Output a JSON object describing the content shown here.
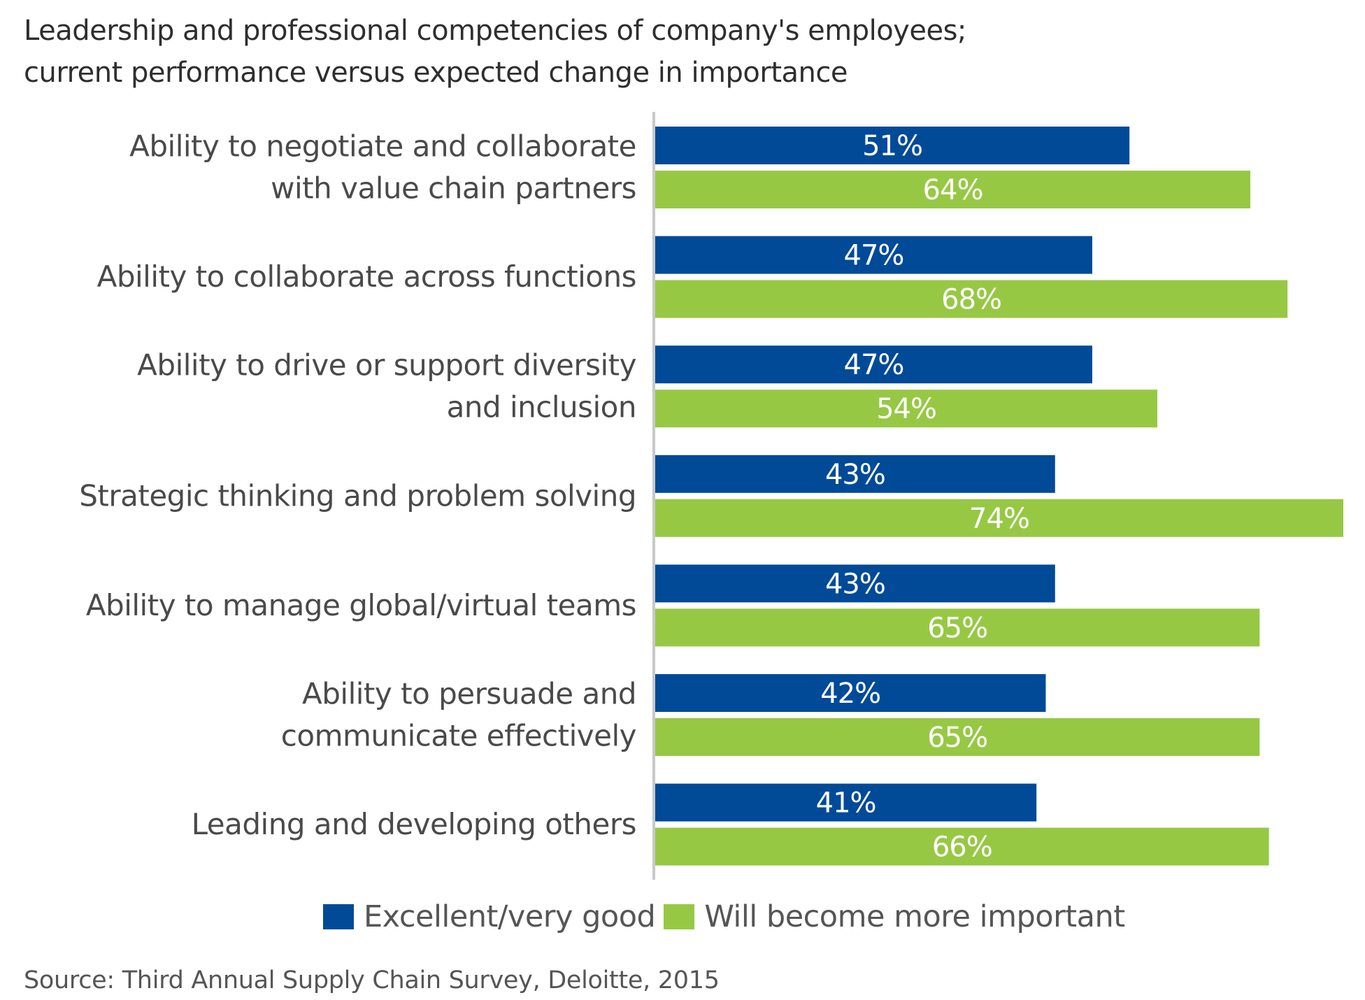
{
  "title_lines": [
    "Leadership and professional competencies of company's employees;",
    "current performance versus expected change in importance"
  ],
  "chart_data": {
    "type": "bar",
    "orientation": "horizontal",
    "categories": [
      [
        "Ability to negotiate and collaborate",
        "with value chain partners"
      ],
      [
        "Ability to collaborate across functions"
      ],
      [
        "Ability to drive or support diversity",
        "and inclusion"
      ],
      [
        "Strategic thinking and problem solving"
      ],
      [
        "Ability to manage global/virtual teams"
      ],
      [
        "Ability to persuade and",
        "communicate effectively"
      ],
      [
        "Leading and developing others"
      ]
    ],
    "series": [
      {
        "name": "Excellent/very good",
        "color": "#004a98",
        "values": [
          51,
          47,
          47,
          43,
          43,
          42,
          41
        ],
        "labels": [
          "51%",
          "47%",
          "47%",
          "43%",
          "43%",
          "42%",
          "41%"
        ]
      },
      {
        "name": "Will become more important",
        "color": "#97c844",
        "values": [
          64,
          68,
          54,
          74,
          65,
          65,
          66
        ],
        "labels": [
          "64%",
          "68%",
          "54%",
          "74%",
          "65%",
          "65%",
          "66%"
        ]
      }
    ],
    "unit": "%",
    "xlim": [
      0,
      74
    ],
    "grid": false,
    "legend": "bottom"
  },
  "source": "Source: Third Annual Supply Chain Survey, Deloitte, 2015"
}
